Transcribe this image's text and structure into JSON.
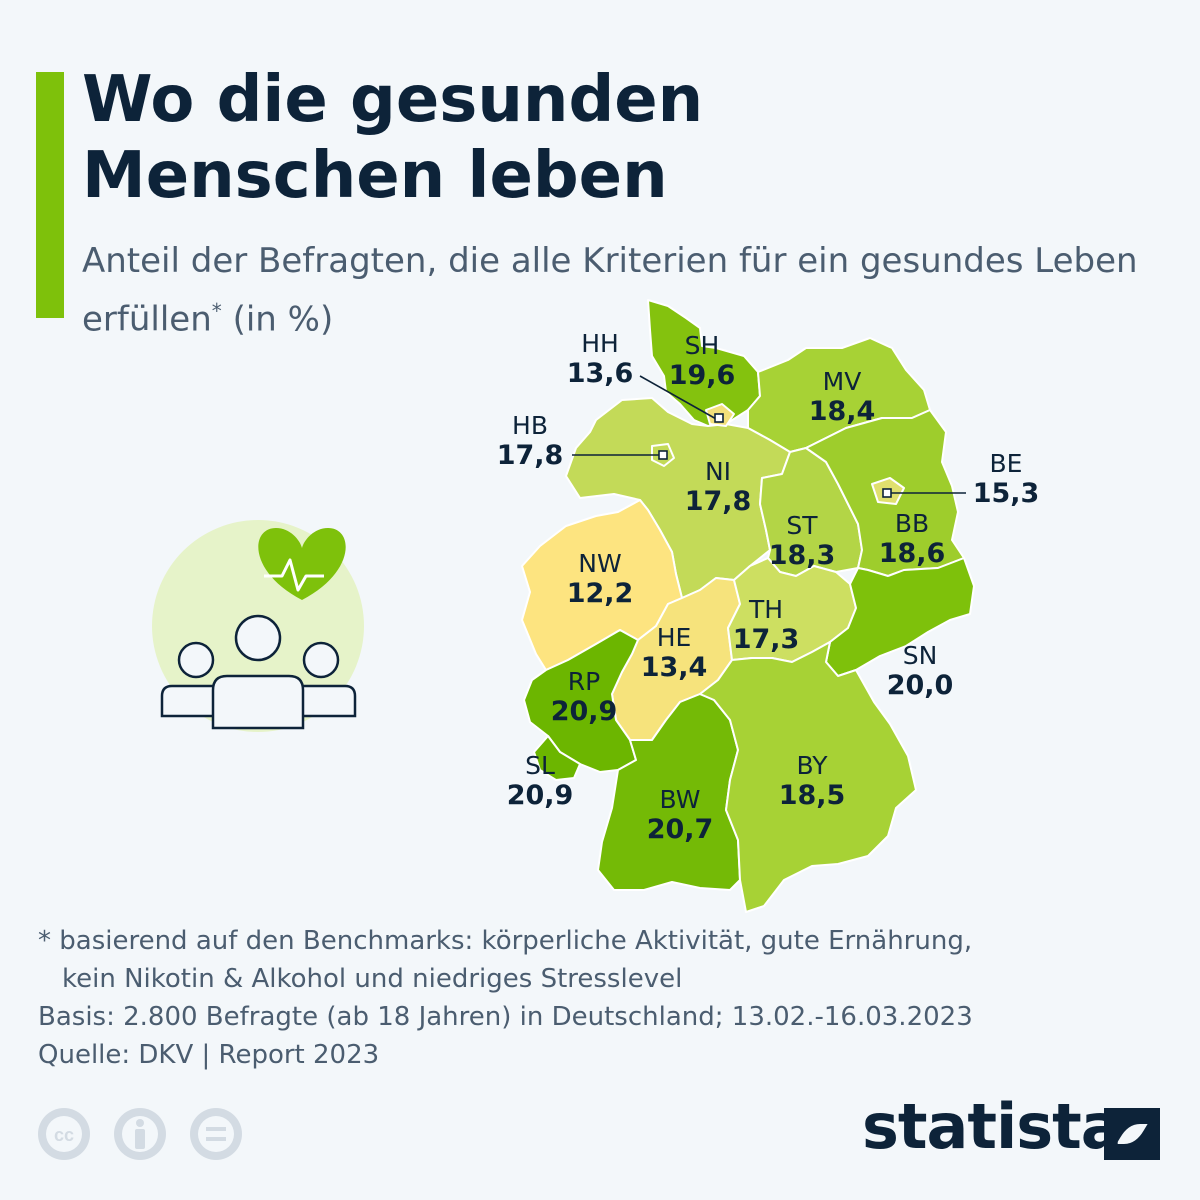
{
  "header": {
    "title_line1": "Wo die gesunden",
    "title_line2": "Menschen leben",
    "subtitle_main": "Anteil der Befragten, die alle Kriterien für ein gesundes Leben erfüllen",
    "subtitle_star": "*",
    "subtitle_unit": " (in %)"
  },
  "map_data": {
    "unit": "%",
    "regions": [
      {
        "code": "SH",
        "value": "19,6",
        "color": "#84c20e"
      },
      {
        "code": "HH",
        "value": "13,6",
        "color": "#f2e07a"
      },
      {
        "code": "MV",
        "value": "18,4",
        "color": "#a7d235"
      },
      {
        "code": "HB",
        "value": "17,8",
        "color": "#c3da58"
      },
      {
        "code": "NI",
        "value": "17,8",
        "color": "#c3da58"
      },
      {
        "code": "BE",
        "value": "15,3",
        "color": "#e0e06e"
      },
      {
        "code": "ST",
        "value": "18,3",
        "color": "#b3d546"
      },
      {
        "code": "BB",
        "value": "18,6",
        "color": "#9ecd2c"
      },
      {
        "code": "NW",
        "value": "12,2",
        "color": "#fde480"
      },
      {
        "code": "TH",
        "value": "17,3",
        "color": "#cddf61"
      },
      {
        "code": "SN",
        "value": "20,0",
        "color": "#7ec10b"
      },
      {
        "code": "HE",
        "value": "13,4",
        "color": "#f6e37c"
      },
      {
        "code": "RP",
        "value": "20,9",
        "color": "#6cb600"
      },
      {
        "code": "SL",
        "value": "20,9",
        "color": "#6cb600"
      },
      {
        "code": "BW",
        "value": "20,7",
        "color": "#74ba06"
      },
      {
        "code": "BY",
        "value": "18,5",
        "color": "#a7d235"
      }
    ]
  },
  "footer": {
    "note_line1": "* basierend auf den Benchmarks: körperliche Aktivität, gute Ernährung,",
    "note_line2": "kein Nikotin & Alkohol und niedriges Stresslevel",
    "basis": "Basis: 2.800 Befragte (ab 18 Jahren) in Deutschland; 13.02.-16.03.2023",
    "source": "Quelle: DKV | Report 2023"
  },
  "license_icons": [
    "cc-icon",
    "attribution-icon",
    "no-derivatives-icon"
  ],
  "brand": {
    "name": "statista"
  },
  "colors": {
    "accent": "#7ec10b",
    "title": "#0d2339",
    "text": "#4b5d70",
    "background": "#f3f7fa"
  }
}
